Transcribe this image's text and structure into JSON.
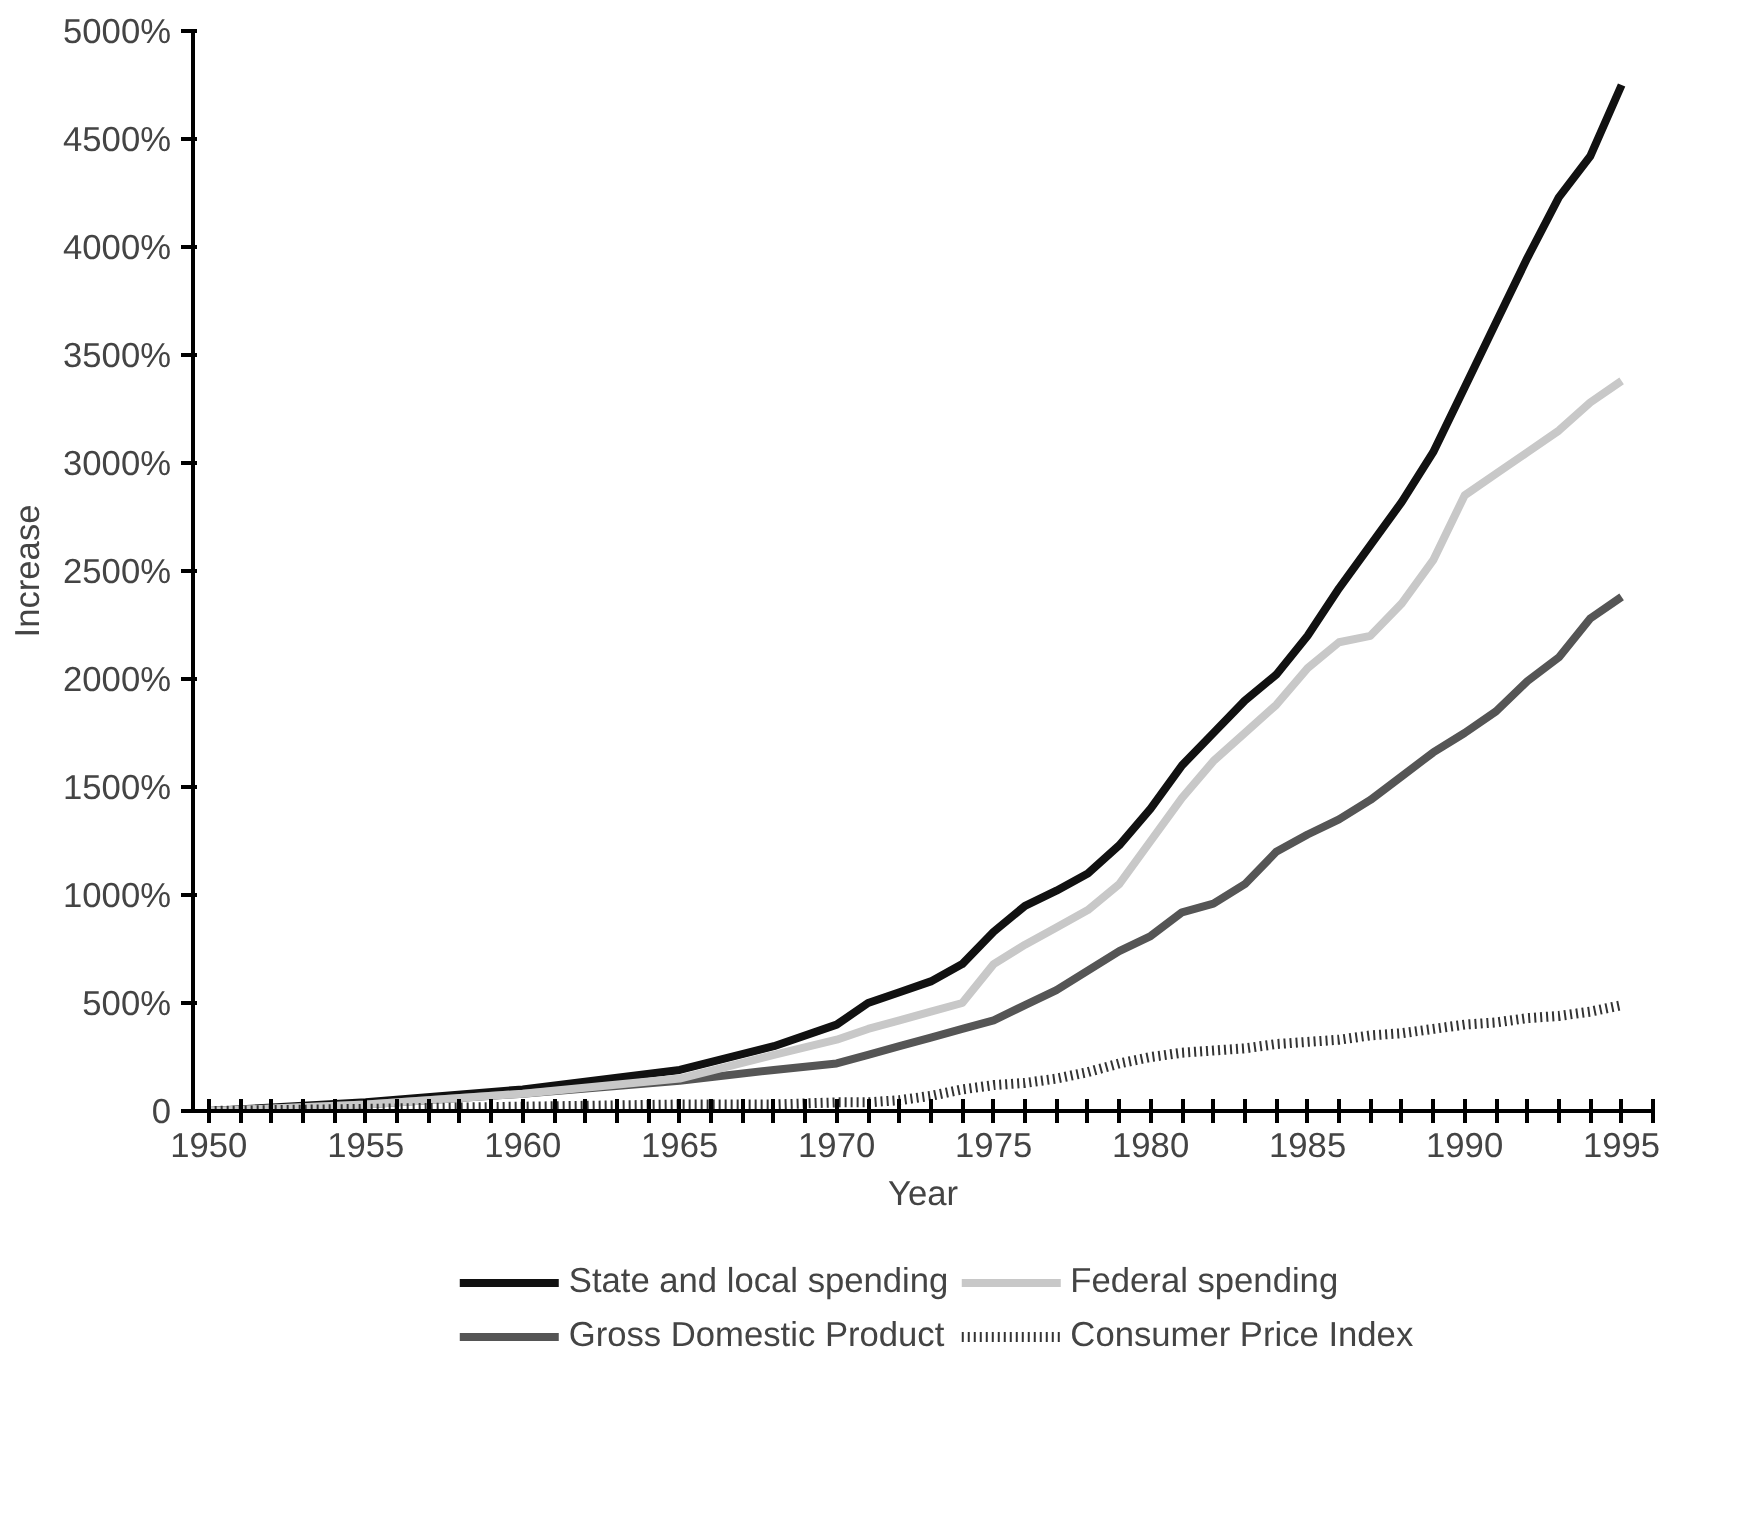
{
  "chart_data": {
    "type": "line",
    "xlabel": "Year",
    "ylabel": "Increase",
    "x": [
      1950,
      1955,
      1960,
      1965,
      1968,
      1970,
      1971,
      1972,
      1973,
      1974,
      1975,
      1976,
      1977,
      1978,
      1979,
      1980,
      1981,
      1982,
      1983,
      1984,
      1985,
      1986,
      1987,
      1988,
      1989,
      1990,
      1991,
      1992,
      1993,
      1994,
      1995
    ],
    "series": [
      {
        "name": "State and local spending",
        "color": "#111111",
        "line_style": "solid",
        "values": [
          0,
          40,
          100,
          190,
          300,
          400,
          500,
          550,
          600,
          680,
          830,
          950,
          1020,
          1100,
          1230,
          1400,
          1600,
          1750,
          1900,
          2020,
          2200,
          2420,
          2620,
          2820,
          3050,
          3350,
          3650,
          3950,
          4230,
          4420,
          4750
        ]
      },
      {
        "name": "Gross Domestic Product",
        "color": "#555555",
        "line_style": "solid",
        "values": [
          0,
          30,
          80,
          140,
          190,
          220,
          260,
          300,
          340,
          380,
          420,
          490,
          560,
          650,
          740,
          810,
          920,
          960,
          1050,
          1200,
          1280,
          1350,
          1440,
          1550,
          1660,
          1750,
          1850,
          1990,
          2100,
          2280,
          2380
        ]
      },
      {
        "name": "Federal spending",
        "color": "#c8c8c8",
        "line_style": "solid",
        "values": [
          0,
          30,
          80,
          150,
          260,
          330,
          380,
          420,
          460,
          500,
          680,
          770,
          850,
          930,
          1050,
          1250,
          1450,
          1620,
          1750,
          1880,
          2050,
          2170,
          2200,
          2350,
          2550,
          2850,
          2950,
          3050,
          3150,
          3280,
          3380
        ]
      },
      {
        "name": "Consumer Price Index",
        "color": "#333333",
        "line_style": "dotted",
        "values": [
          0,
          10,
          20,
          30,
          30,
          40,
          40,
          50,
          70,
          100,
          120,
          130,
          150,
          180,
          220,
          250,
          270,
          280,
          290,
          310,
          320,
          330,
          350,
          360,
          380,
          400,
          410,
          430,
          440,
          460,
          490
        ]
      }
    ],
    "xlim": [
      1949.5,
      1996
    ],
    "ylim": [
      0,
      5000
    ],
    "xticks": [
      1950,
      1955,
      1960,
      1965,
      1970,
      1975,
      1980,
      1985,
      1990,
      1995
    ],
    "yticks": [
      {
        "value": 0,
        "label": "0"
      },
      {
        "value": 500,
        "label": "500%"
      },
      {
        "value": 1000,
        "label": "1000%"
      },
      {
        "value": 1500,
        "label": "1500%"
      },
      {
        "value": 2000,
        "label": "2000%"
      },
      {
        "value": 2500,
        "label": "2500%"
      },
      {
        "value": 3000,
        "label": "3000%"
      },
      {
        "value": 3500,
        "label": "3500%"
      },
      {
        "value": 4000,
        "label": "4000%"
      },
      {
        "value": 4500,
        "label": "4500%"
      },
      {
        "value": 5000,
        "label": "5000%"
      }
    ],
    "grid": false,
    "legend": "bottom",
    "marker": "none"
  }
}
